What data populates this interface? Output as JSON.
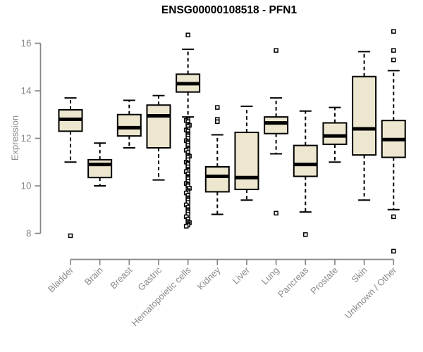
{
  "chart_data": {
    "type": "boxplot",
    "title": "ENSG00000108518 - PFN1",
    "ylabel": "Expression",
    "xlabel": "",
    "ylim": [
      8,
      16
    ],
    "yticks": [
      8,
      10,
      12,
      14,
      16
    ],
    "grid": false,
    "legend": "none",
    "colors": {
      "box_fill": "#ede7cf",
      "box_border": "#000000",
      "median": "#000000",
      "whisker": "#000000",
      "outlier_stroke": "#000000",
      "outlier_fill": "#ffffff",
      "axis": "#878787",
      "tick_label": "#8a8a8a",
      "title": "#000000",
      "background": "#ffffff"
    },
    "categories": [
      "Bladder",
      "Brain",
      "Breast",
      "Gastric",
      "Hematopoietic cells",
      "Kidney",
      "Liver",
      "Lung",
      "Pancreas",
      "Prostate",
      "Skin",
      "Unknown / Other"
    ],
    "boxes": [
      {
        "category": "Bladder",
        "whisker_low": 11.0,
        "q1": 12.3,
        "median": 12.8,
        "q3": 13.2,
        "whisker_high": 13.7,
        "outliers": [
          7.9
        ]
      },
      {
        "category": "Brain",
        "whisker_low": 10.0,
        "q1": 10.35,
        "median": 10.9,
        "q3": 11.1,
        "whisker_high": 11.8,
        "outliers": []
      },
      {
        "category": "Breast",
        "whisker_low": 11.6,
        "q1": 12.1,
        "median": 12.45,
        "q3": 13.0,
        "whisker_high": 13.6,
        "outliers": []
      },
      {
        "category": "Gastric",
        "whisker_low": 10.25,
        "q1": 11.6,
        "median": 12.95,
        "q3": 13.4,
        "whisker_high": 13.8,
        "outliers": []
      },
      {
        "category": "Hematopoietic cells",
        "whisker_low": 12.9,
        "q1": 13.95,
        "median": 14.3,
        "q3": 14.7,
        "whisker_high": 15.75,
        "outliers": [
          16.35,
          12.8,
          12.75,
          12.7,
          12.6,
          12.55,
          12.5,
          12.4,
          12.35,
          12.3,
          12.2,
          12.15,
          12.1,
          12.0,
          11.9,
          11.85,
          11.8,
          11.7,
          11.6,
          11.55,
          11.5,
          11.4,
          11.3,
          11.25,
          11.2,
          11.1,
          11.0,
          10.95,
          10.9,
          10.8,
          10.7,
          10.65,
          10.6,
          10.5,
          10.4,
          10.35,
          10.3,
          10.2,
          10.1,
          10.05,
          10.0,
          9.9,
          9.8,
          9.75,
          9.7,
          9.6,
          9.5,
          9.45,
          9.4,
          9.3,
          9.2,
          9.1,
          9.0,
          8.95,
          8.9,
          8.8,
          8.7,
          8.6,
          8.5,
          8.45,
          8.4,
          8.35,
          8.3
        ]
      },
      {
        "category": "Kidney",
        "whisker_low": 8.8,
        "q1": 9.75,
        "median": 10.4,
        "q3": 10.8,
        "whisker_high": 12.15,
        "outliers": [
          13.3,
          12.8,
          12.7
        ]
      },
      {
        "category": "Liver",
        "whisker_low": 9.4,
        "q1": 9.85,
        "median": 10.35,
        "q3": 12.25,
        "whisker_high": 13.35,
        "outliers": []
      },
      {
        "category": "Lung",
        "whisker_low": 11.35,
        "q1": 12.2,
        "median": 12.65,
        "q3": 12.9,
        "whisker_high": 13.7,
        "outliers": [
          15.7,
          8.85
        ]
      },
      {
        "category": "Pancreas",
        "whisker_low": 8.9,
        "q1": 10.4,
        "median": 10.9,
        "q3": 11.7,
        "whisker_high": 13.15,
        "outliers": [
          7.95
        ]
      },
      {
        "category": "Prostate",
        "whisker_low": 11.0,
        "q1": 11.75,
        "median": 12.1,
        "q3": 12.65,
        "whisker_high": 13.3,
        "outliers": []
      },
      {
        "category": "Skin",
        "whisker_low": 9.4,
        "q1": 11.3,
        "median": 12.4,
        "q3": 14.6,
        "whisker_high": 15.65,
        "outliers": []
      },
      {
        "category": "Unknown / Other",
        "whisker_low": 9.0,
        "q1": 11.2,
        "median": 11.95,
        "q3": 12.75,
        "whisker_high": 14.85,
        "outliers": [
          16.5,
          15.7,
          15.3,
          8.7,
          7.25
        ]
      }
    ]
  }
}
